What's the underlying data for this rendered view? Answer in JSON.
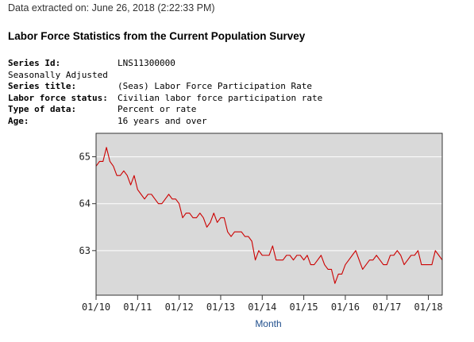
{
  "header": {
    "extracted": "Data extracted on: June 26, 2018 (2:22:33 PM)",
    "title": "Labor Force Statistics from the Current Population Survey"
  },
  "meta": {
    "series_id_label": "Series Id:",
    "series_id": "LNS11300000",
    "seasonal": "Seasonally Adjusted",
    "series_title_label": "Series title:",
    "series_title": "(Seas) Labor Force Participation Rate",
    "status_label": "Labor force status:",
    "status": "Civilian labor force participation rate",
    "type_label": "Type of data:",
    "type": "Percent or rate",
    "age_label": "Age:",
    "age": "16 years and over"
  },
  "chart_data": {
    "type": "line",
    "xlabel": "Month",
    "ylabel": "",
    "ylim": [
      62.05,
      65.5
    ],
    "xlim": [
      "2010-01",
      "2018-05"
    ],
    "x_ticks": [
      "01/10",
      "01/11",
      "01/12",
      "01/13",
      "01/14",
      "01/15",
      "01/16",
      "01/17",
      "01/18"
    ],
    "y_ticks": [
      63,
      64,
      65
    ],
    "grid": true,
    "line_color": "#cc0000",
    "plot_bg": "#d9d9d9",
    "series": [
      {
        "start": "2010-01",
        "values": [
          64.8,
          64.9,
          64.9,
          65.2,
          64.9,
          64.8,
          64.6,
          64.6,
          64.7,
          64.6,
          64.4,
          64.6,
          64.3,
          64.2,
          64.1,
          64.2,
          64.2,
          64.1,
          64.0,
          64.0,
          64.1,
          64.2,
          64.1,
          64.1,
          64.0,
          63.7,
          63.8,
          63.8,
          63.7,
          63.7,
          63.8,
          63.7,
          63.5,
          63.6,
          63.8,
          63.6,
          63.7,
          63.7,
          63.4,
          63.3,
          63.4,
          63.4,
          63.4,
          63.3,
          63.3,
          63.2,
          62.8,
          63.0,
          62.9,
          62.9,
          62.9,
          63.1,
          62.8,
          62.8,
          62.8,
          62.9,
          62.9,
          62.8,
          62.9,
          62.9,
          62.8,
          62.9,
          62.7,
          62.7,
          62.8,
          62.9,
          62.7,
          62.6,
          62.6,
          62.3,
          62.5,
          62.5,
          62.7,
          62.8,
          62.9,
          63.0,
          62.8,
          62.6,
          62.7,
          62.8,
          62.8,
          62.9,
          62.8,
          62.7,
          62.7,
          62.9,
          62.9,
          63.0,
          62.9,
          62.7,
          62.8,
          62.9,
          62.9,
          63.0,
          62.7,
          62.7,
          62.7,
          62.7,
          63.0,
          62.9,
          62.8
        ]
      }
    ]
  }
}
